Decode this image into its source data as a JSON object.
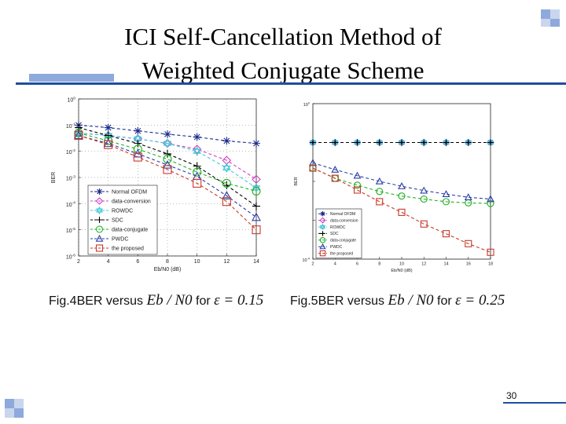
{
  "slide": {
    "title_line1": "ICI Self-Cancellation Method of",
    "title_line2": "Weighted Conjugate Scheme",
    "page_number": "30",
    "accent_color": "#1f4e9c",
    "light_accent_color": "#8ea9db"
  },
  "captions": {
    "fig4_prefix": "Fig.4BER versus",
    "fig4_ratio": "Eb / N0",
    "fig4_for": "for",
    "fig4_eps": "ε = 0.15",
    "fig5_prefix": "Fig.5BER versus",
    "fig5_ratio": "Eb / N0",
    "fig5_for": "for",
    "fig5_eps": "ε = 0.25"
  },
  "chart_data": [
    {
      "type": "line",
      "title": "",
      "xlabel": "Eb/N0 (dB)",
      "ylabel": "BER",
      "x": [
        2,
        4,
        6,
        8,
        10,
        12,
        14
      ],
      "xticks": [
        "2",
        "4",
        "6",
        "8",
        "10",
        "12",
        "14"
      ],
      "ylim_exp": [
        -6,
        0
      ],
      "yticks": [
        "10^0",
        "10^-1",
        "10^-2",
        "10^-3",
        "10^-4",
        "10^-5",
        "10^-6"
      ],
      "log_y": true,
      "grid": true,
      "legend": "bottom-left",
      "series": [
        {
          "name": "Normal OFDM",
          "marker": "star",
          "color": "#1b2a8c",
          "values": [
            0.1,
            0.08,
            0.06,
            0.045,
            0.035,
            0.025,
            0.02
          ]
        },
        {
          "name": "data-conversion",
          "marker": "diamond",
          "color": "#d040c0",
          "values": [
            0.05,
            0.04,
            0.03,
            0.02,
            0.012,
            0.0045,
            0.00085
          ]
        },
        {
          "name": "ROWDC",
          "marker": "hexagram",
          "color": "#44c8d8",
          "values": [
            0.05,
            0.04,
            0.03,
            0.02,
            0.01,
            0.0023,
            0.0004
          ]
        },
        {
          "name": "SDC",
          "marker": "plus",
          "color": "#000000",
          "values": [
            0.08,
            0.04,
            0.02,
            0.008,
            0.0027,
            0.0005,
            8e-05
          ]
        },
        {
          "name": "data-conjugate",
          "marker": "circle",
          "color": "#22b022",
          "values": [
            0.05,
            0.025,
            0.012,
            0.005,
            0.0016,
            0.0006,
            0.0003
          ]
        },
        {
          "name": "PWDC",
          "marker": "triangle",
          "color": "#2b3fa6",
          "values": [
            0.04,
            0.02,
            0.008,
            0.003,
            0.0011,
            0.0002,
            3e-05
          ]
        },
        {
          "name": "the proposed",
          "marker": "square",
          "color": "#c83a2a",
          "values": [
            0.04,
            0.018,
            0.006,
            0.002,
            0.0006,
            0.00012,
            1e-05
          ]
        }
      ]
    },
    {
      "type": "line",
      "title": "",
      "xlabel": "Eb/N0 (dB)",
      "ylabel": "BER",
      "x": [
        2,
        4,
        6,
        8,
        10,
        12,
        14,
        16,
        18
      ],
      "xticks": [
        "2",
        "4",
        "6",
        "8",
        "10",
        "12",
        "14",
        "16",
        "18"
      ],
      "ylim_exp": [
        -4,
        0
      ],
      "yticks": [
        "10^0",
        "",
        "",
        "",
        "10^-4"
      ],
      "log_y": true,
      "grid": false,
      "legend": "bottom-left",
      "series": [
        {
          "name": "Normal OFDM",
          "marker": "star",
          "color": "#1b2a8c",
          "values": [
            0.1,
            0.1,
            0.1,
            0.1,
            0.1,
            0.1,
            0.1,
            0.1,
            0.1
          ]
        },
        {
          "name": "data-conversion",
          "marker": "diamond",
          "color": "#d040c0",
          "values": [
            0.1,
            0.1,
            0.1,
            0.1,
            0.1,
            0.1,
            0.1,
            0.1,
            0.1
          ]
        },
        {
          "name": "ROWDC",
          "marker": "hexagram",
          "color": "#44c8d8",
          "values": [
            0.1,
            0.1,
            0.1,
            0.1,
            0.1,
            0.1,
            0.1,
            0.1,
            0.1
          ]
        },
        {
          "name": "SDC",
          "marker": "plus",
          "color": "#000000",
          "values": [
            0.1,
            0.1,
            0.1,
            0.1,
            0.1,
            0.1,
            0.1,
            0.1,
            0.1
          ]
        },
        {
          "name": "data-conjugate",
          "marker": "circle",
          "color": "#22b022",
          "values": [
            0.022,
            0.012,
            0.008,
            0.0055,
            0.0042,
            0.0035,
            0.003,
            0.0028,
            0.0027
          ]
        },
        {
          "name": "PWDC",
          "marker": "triangle",
          "color": "#2b3fa6",
          "values": [
            0.03,
            0.02,
            0.014,
            0.01,
            0.0075,
            0.0058,
            0.0047,
            0.0039,
            0.0035
          ]
        },
        {
          "name": "the proposed",
          "marker": "square",
          "color": "#c83a2a",
          "values": [
            0.022,
            0.012,
            0.006,
            0.003,
            0.0016,
            0.0008,
            0.00045,
            0.00025,
            0.00015
          ]
        }
      ]
    }
  ]
}
